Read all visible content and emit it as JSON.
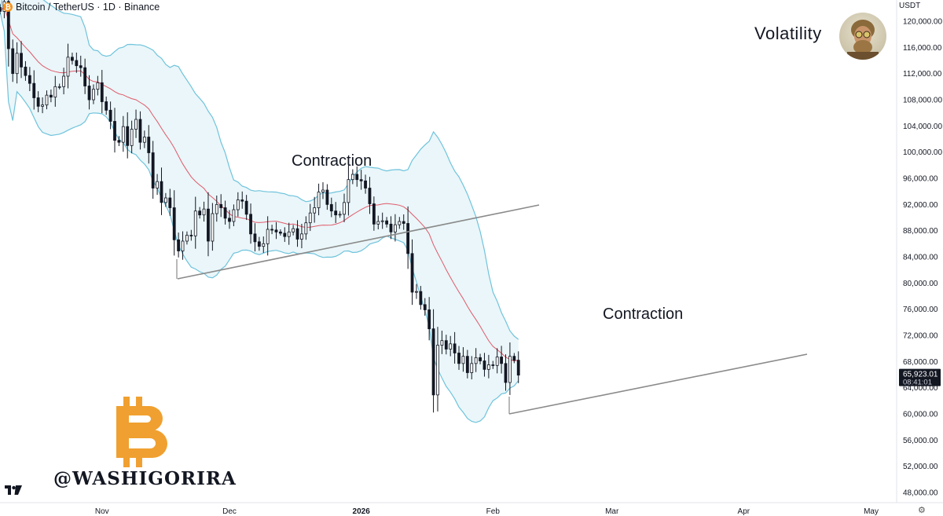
{
  "header": {
    "coin_icon_symbol": "₿",
    "symbol_title": "Bitcoin / TetherUS · 1D · Binance"
  },
  "price_axis": {
    "quote_currency": "USDT",
    "current_price": "65,923.01",
    "countdown": "08:41:01"
  },
  "annotations": {
    "volatility": "Volatility",
    "contraction_1": "Contraction",
    "contraction_2": "Contraction"
  },
  "branding": {
    "watermark": "@WASHIGORIRA",
    "bitcoin_logo_icon": "bitcoin-b-icon",
    "tradingview_logo_icon": "tradingview-logo-icon",
    "settings_icon": "gear-icon"
  },
  "colors": {
    "up_candle": "#ffffff",
    "down_candle": "#131722",
    "bollinger_band": "#6fc3dc",
    "bollinger_fill": "#eaf6f9",
    "basis_line": "#e05a6b",
    "trendline": "#8a8a8a",
    "bitcoin_orange": "#f0a030"
  },
  "chart_data": {
    "type": "candlestick",
    "symbol": "BTCUSDT",
    "timeframe": "1D",
    "exchange": "Binance",
    "ylim": [
      46000,
      122000
    ],
    "y_scale": "linear",
    "y_ticks": [
      48000,
      52000,
      56000,
      60000,
      64000,
      68000,
      72000,
      76000,
      80000,
      84000,
      88000,
      92000,
      96000,
      100000,
      104000,
      108000,
      112000,
      116000,
      120000
    ],
    "y_tick_labels": [
      "48,000.00",
      "52,000.00",
      "56,000.00",
      "60,000.00",
      "64,000.00",
      "68,000.00",
      "72,000.00",
      "76,000.00",
      "80,000.00",
      "84,000.00",
      "88,000.00",
      "92,000.00",
      "96,000.00",
      "100,000.00",
      "104,000.00",
      "108,000.00",
      "112,000.00",
      "116,000.00",
      "120,000.00"
    ],
    "x_ticks": [
      {
        "label": "Nov",
        "date": "2025-11-01",
        "bold": false
      },
      {
        "label": "Dec",
        "date": "2025-12-01",
        "bold": false
      },
      {
        "label": "2026",
        "date": "2026-01-01",
        "bold": true
      },
      {
        "label": "Feb",
        "date": "2026-02-01",
        "bold": false
      },
      {
        "label": "Mar",
        "date": "2026-03-01",
        "bold": false
      },
      {
        "label": "Apr",
        "date": "2026-04-01",
        "bold": false
      },
      {
        "label": "May",
        "date": "2026-05-01",
        "bold": false
      }
    ],
    "x_range_dates": [
      "2025-10-08",
      "2026-05-07"
    ],
    "indicators": [
      "Bollinger Bands (20, 2)"
    ],
    "close_series": {
      "start_date": "2025-10-08",
      "values": [
        121500,
        123000,
        115800,
        112000,
        115100,
        113000,
        111700,
        110500,
        108300,
        107000,
        107200,
        108700,
        108400,
        110000,
        110000,
        111600,
        114500,
        114000,
        113200,
        112900,
        110100,
        108000,
        109600,
        110600,
        107700,
        106400,
        104700,
        101800,
        101500,
        103900,
        101000,
        103500,
        105000,
        101500,
        102300,
        99900,
        94500,
        95500,
        92300,
        93000,
        91500,
        86600,
        84900,
        86400,
        87300,
        87200,
        91000,
        90400,
        91300,
        86400,
        90600,
        92000,
        91500,
        89900,
        89400,
        91200,
        92700,
        92500,
        90500,
        87500,
        86300,
        85600,
        86000,
        88200,
        88100,
        87800,
        87600,
        87100,
        87800,
        88300,
        86700,
        87500,
        89200,
        90700,
        91500,
        93900,
        94200,
        92000,
        91000,
        90400,
        90500,
        92300,
        95800,
        96600,
        95800,
        95600,
        94500,
        92100,
        89000,
        89400,
        89500,
        89000,
        87800,
        88900,
        89400,
        89100,
        84500,
        78600,
        78700,
        76700,
        75900,
        73000,
        62900,
        70500,
        71200,
        69900,
        70700,
        69300,
        67700,
        68800,
        66300,
        67700,
        68600,
        68100,
        66800,
        67500,
        67400,
        68700,
        67700,
        64800,
        68800,
        68200,
        65923
      ]
    }
  }
}
